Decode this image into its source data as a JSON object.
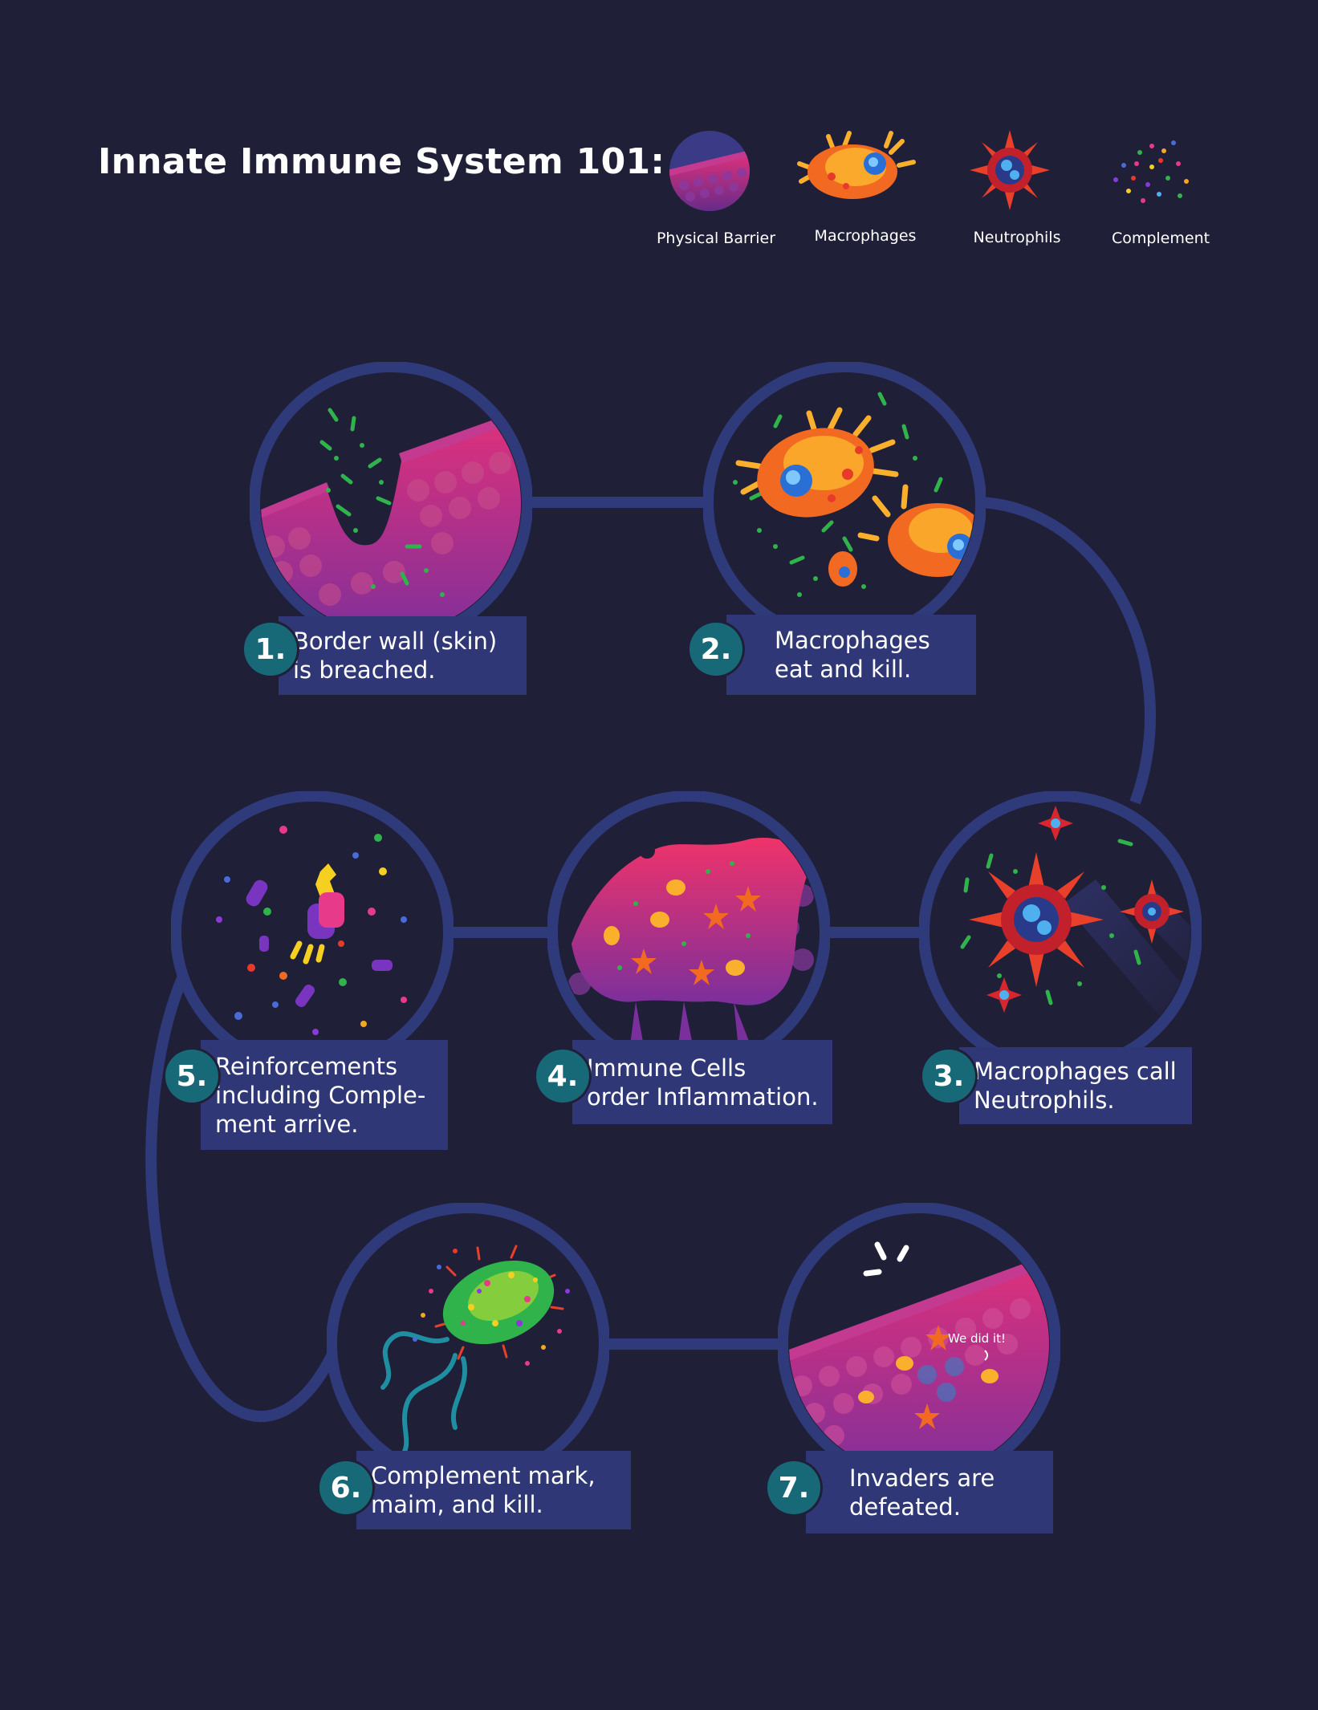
{
  "title": "Innate Immune System 101:",
  "legend": [
    {
      "label": "Physical Barrier",
      "icon": "physical-barrier-icon"
    },
    {
      "label": "Macrophages",
      "icon": "macrophage-icon"
    },
    {
      "label": "Neutrophils",
      "icon": "neutrophil-icon"
    },
    {
      "label": "Complement",
      "icon": "complement-icon"
    }
  ],
  "steps": [
    {
      "number": "1.",
      "line1": "Border wall (skin)",
      "line2": "is breached.",
      "line3": ""
    },
    {
      "number": "2.",
      "line1": "Macrophages",
      "line2": "eat and kill.",
      "line3": ""
    },
    {
      "number": "3.",
      "line1": "Macrophages call",
      "line2": "Neutrophils.",
      "line3": ""
    },
    {
      "number": "4.",
      "line1": "Immune Cells",
      "line2": "order Inflammation.",
      "line3": ""
    },
    {
      "number": "5.",
      "line1": "Reinforcements",
      "line2": "including Comple-",
      "line3": "ment arrive."
    },
    {
      "number": "6.",
      "line1": "Complement mark,",
      "line2": "maim, and kill.",
      "line3": ""
    },
    {
      "number": "7.",
      "line1": "Invaders are",
      "line2": "defeated.",
      "line3": ""
    }
  ],
  "speech": "We did it!",
  "colors": {
    "background": "#201f38",
    "path": "#2f3a7a",
    "label_box": "#2f3777",
    "badge": "#186977",
    "skin_pink": "#e0317a",
    "skin_purple": "#7b2f9c",
    "macrophage_orange": "#f26a22",
    "macrophage_yellow": "#fbb02d",
    "nucleus_blue": "#2a6fd6",
    "neutrophil_red": "#d8262e",
    "bacteria_green": "#2fb34a"
  }
}
